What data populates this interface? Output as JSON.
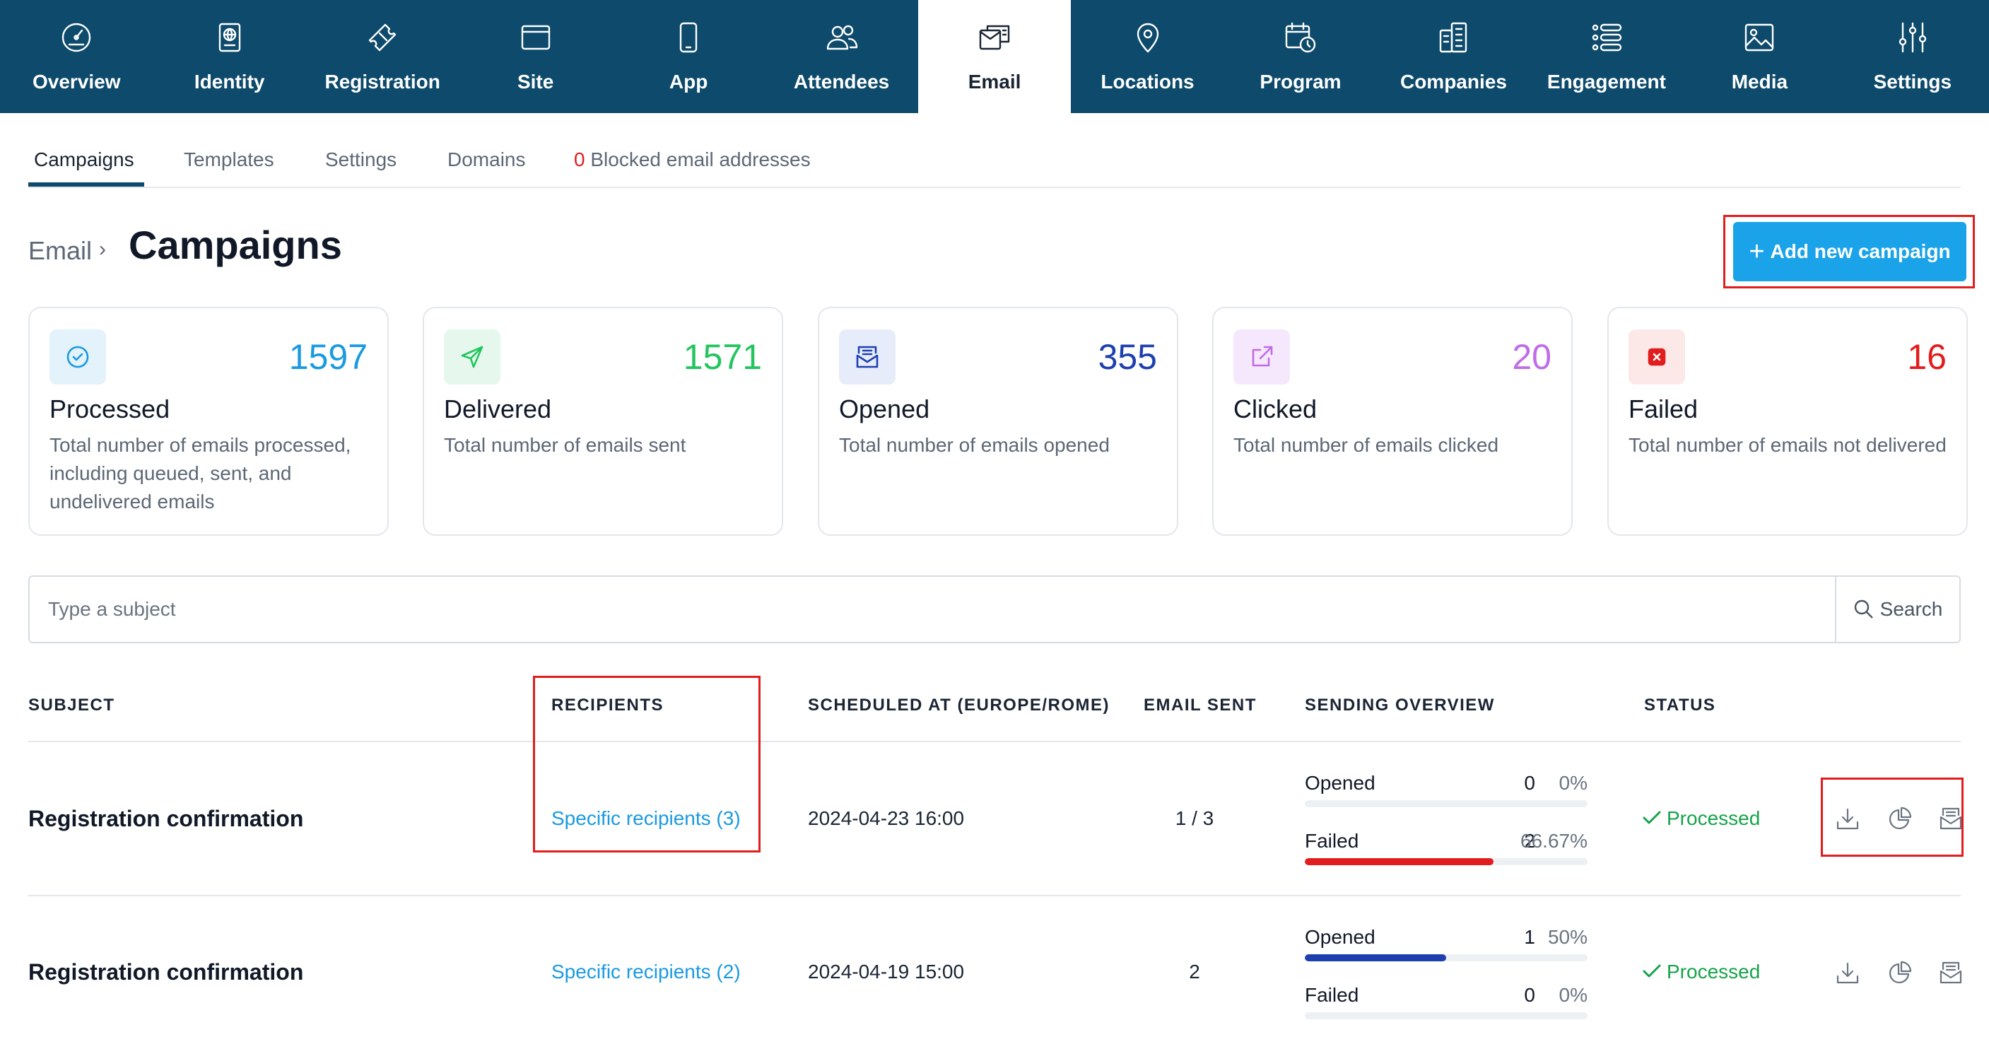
{
  "topnav": {
    "items": [
      {
        "label": "Overview",
        "icon": "dashboard-gauge-icon"
      },
      {
        "label": "Identity",
        "icon": "passport-icon"
      },
      {
        "label": "Registration",
        "icon": "ticket-icon"
      },
      {
        "label": "Site",
        "icon": "browser-window-icon"
      },
      {
        "label": "App",
        "icon": "smartphone-icon"
      },
      {
        "label": "Attendees",
        "icon": "users-icon"
      },
      {
        "label": "Email",
        "icon": "email-icon",
        "active": true
      },
      {
        "label": "Locations",
        "icon": "map-pin-icon"
      },
      {
        "label": "Program",
        "icon": "calendar-clock-icon"
      },
      {
        "label": "Companies",
        "icon": "buildings-icon"
      },
      {
        "label": "Engagement",
        "icon": "engagement-list-icon"
      },
      {
        "label": "Media",
        "icon": "image-icon"
      },
      {
        "label": "Settings",
        "icon": "sliders-icon"
      }
    ]
  },
  "subtabs": {
    "campaigns": "Campaigns",
    "templates": "Templates",
    "settings": "Settings",
    "domains": "Domains",
    "blocked_count": "0",
    "blocked_label": "Blocked email addresses"
  },
  "header": {
    "breadcrumb": "Email",
    "separator": "›",
    "title": "Campaigns",
    "add_button": "Add new campaign",
    "add_button_plus": "+"
  },
  "stats": [
    {
      "value": "1597",
      "title": "Processed",
      "desc": "Total number of emails processed, including queued, sent, and undelivered emails",
      "color": "#1a9ae0",
      "bg": "#e3f2fb",
      "icon": "check-circle-icon"
    },
    {
      "value": "1571",
      "title": "Delivered",
      "desc": "Total number of emails sent",
      "color": "#22c55e",
      "bg": "#e6f8ee",
      "icon": "send-icon"
    },
    {
      "value": "355",
      "title": "Opened",
      "desc": "Total number of emails opened",
      "color": "#1e40af",
      "bg": "#e6ecfa",
      "icon": "inbox-icon"
    },
    {
      "value": "20",
      "title": "Clicked",
      "desc": "Total number of emails clicked",
      "color": "#c06ce8",
      "bg": "#f6e8fc",
      "icon": "external-link-icon"
    },
    {
      "value": "16",
      "title": "Failed",
      "desc": "Total number of emails not delivered",
      "color": "#e11d1d",
      "bg": "#fde8e8",
      "icon": "x-square-icon"
    }
  ],
  "search": {
    "placeholder": "Type a subject",
    "button_label": "Search"
  },
  "table": {
    "headers": {
      "subject": "SUBJECT",
      "recipients": "RECIPIENTS",
      "scheduled": "SCHEDULED AT (EUROPE/ROME)",
      "sent": "EMAIL SENT",
      "overview": "SENDING OVERVIEW",
      "status": "STATUS"
    },
    "rows": [
      {
        "subject": "Registration confirmation",
        "recipients": "Specific recipients (3)",
        "scheduled": "2024-04-23 16:00",
        "sent": "1 / 3",
        "opened_label": "Opened",
        "opened_count": "0",
        "opened_pct": "0%",
        "opened_fraction": 0,
        "failed_label": "Failed",
        "failed_count": "2",
        "failed_pct": "66.67%",
        "failed_fraction": 0.6667,
        "status": "Processed"
      },
      {
        "subject": "Registration confirmation",
        "recipients": "Specific recipients (2)",
        "scheduled": "2024-04-19 15:00",
        "sent": "2",
        "opened_label": "Opened",
        "opened_count": "1",
        "opened_pct": "50%",
        "opened_fraction": 0.5,
        "failed_label": "Failed",
        "failed_count": "0",
        "failed_pct": "0%",
        "failed_fraction": 0,
        "status": "Processed"
      }
    ],
    "action_icons": [
      "download-icon",
      "pie-chart-icon",
      "inbox-archive-icon"
    ]
  },
  "colors": {
    "nav_bg": "#0d4a6b",
    "accent": "#1aa3e8",
    "link": "#1a9ae0",
    "success": "#16a34a",
    "danger": "#e11d1d",
    "opened_bar": "#1e40af"
  }
}
